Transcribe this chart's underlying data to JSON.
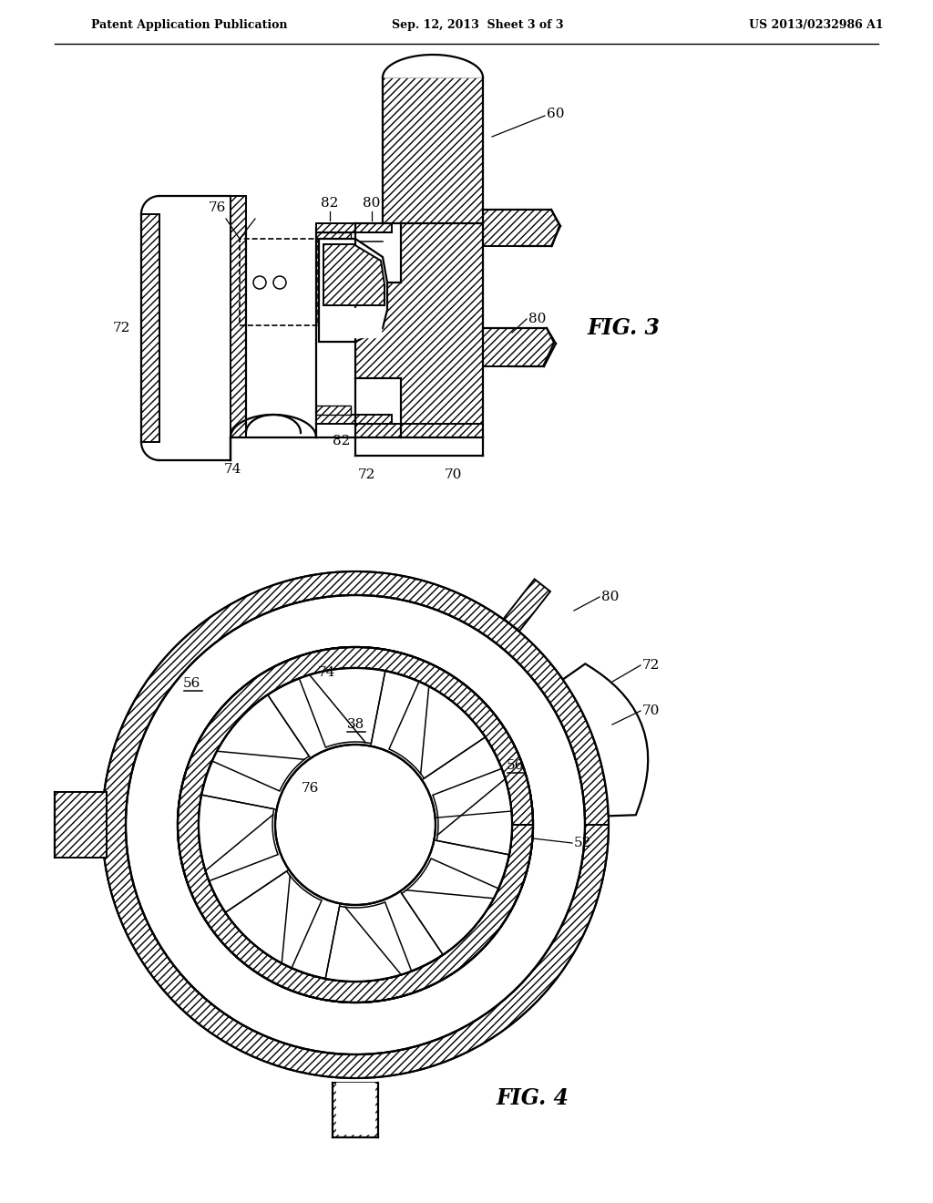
{
  "header_left": "Patent Application Publication",
  "header_mid": "Sep. 12, 2013  Sheet 3 of 3",
  "header_right": "US 2013/0232986 A1",
  "fig3_label": "FIG. 3",
  "fig4_label": "FIG. 4",
  "background_color": "#ffffff",
  "line_color": "#000000"
}
